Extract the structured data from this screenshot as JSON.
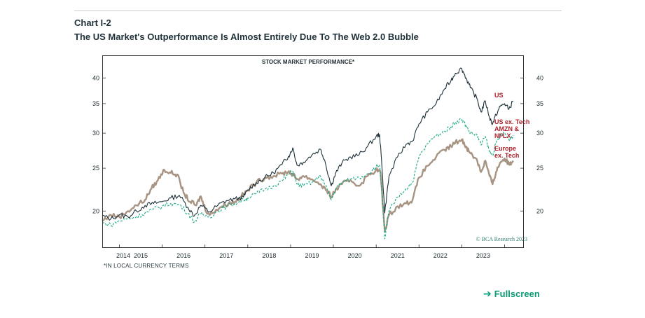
{
  "header": {
    "chart_label": "Chart I-2",
    "chart_title": "The US Market's Outperformance Is Almost Entirely Due To The Web 2.0 Bubble"
  },
  "fullscreen": {
    "label": "Fullscreen",
    "icon": "arrow-right-icon"
  },
  "colors": {
    "us": "#1c3038",
    "us_ex_tech": "#16a884",
    "europe": "#a69382",
    "label_red": "#b0222a",
    "copyright": "#2e7d6e"
  },
  "chart_data": {
    "type": "line",
    "title": "STOCK MARKET PERFORMANCE*",
    "footnote": "*IN LOCAL CURRENCY TERMS",
    "copyright": "© BCA Research 2023",
    "y_scale": "log",
    "xlim": [
      2013.6,
      2023.45
    ],
    "ylim": [
      16.5,
      45
    ],
    "x_ticks": [
      2014,
      2015,
      2016,
      2017,
      2018,
      2019,
      2020,
      2021,
      2022,
      2023
    ],
    "x_tick_labels": [
      "2014",
      "2015",
      "2016",
      "2017",
      "2018",
      "2019",
      "2020",
      "2021",
      "2022",
      "2023"
    ],
    "y_ticks": [
      20,
      25,
      30,
      35,
      40
    ],
    "y_tick_labels": [
      "20",
      "25",
      "30",
      "35",
      "40"
    ],
    "series": [
      {
        "name": "US",
        "line_style": "solid",
        "label_lines": [
          "US"
        ],
        "points": [
          [
            2013.6,
            19.5
          ],
          [
            2013.8,
            19.2
          ],
          [
            2014.0,
            19.6
          ],
          [
            2014.2,
            19.4
          ],
          [
            2014.4,
            20.0
          ],
          [
            2014.6,
            20.6
          ],
          [
            2014.8,
            20.8
          ],
          [
            2015.0,
            21.0
          ],
          [
            2015.2,
            21.4
          ],
          [
            2015.4,
            21.7
          ],
          [
            2015.6,
            20.4
          ],
          [
            2015.75,
            19.5
          ],
          [
            2015.9,
            20.6
          ],
          [
            2016.1,
            19.9
          ],
          [
            2016.3,
            20.6
          ],
          [
            2016.5,
            21.1
          ],
          [
            2016.7,
            21.3
          ],
          [
            2016.9,
            21.5
          ],
          [
            2017.0,
            22.3
          ],
          [
            2017.2,
            23.2
          ],
          [
            2017.4,
            23.8
          ],
          [
            2017.6,
            24.4
          ],
          [
            2017.8,
            25.5
          ],
          [
            2017.95,
            26.6
          ],
          [
            2018.05,
            27.8
          ],
          [
            2018.15,
            25.4
          ],
          [
            2018.3,
            25.8
          ],
          [
            2018.5,
            26.8
          ],
          [
            2018.7,
            27.6
          ],
          [
            2018.8,
            26.0
          ],
          [
            2018.95,
            22.8
          ],
          [
            2019.05,
            24.3
          ],
          [
            2019.2,
            25.7
          ],
          [
            2019.4,
            26.5
          ],
          [
            2019.6,
            26.8
          ],
          [
            2019.8,
            28.0
          ],
          [
            2020.0,
            29.5
          ],
          [
            2020.08,
            29.8
          ],
          [
            2020.15,
            24.0
          ],
          [
            2020.2,
            19.8
          ],
          [
            2020.3,
            24.0
          ],
          [
            2020.5,
            26.5
          ],
          [
            2020.7,
            28.3
          ],
          [
            2020.85,
            28.8
          ],
          [
            2021.0,
            31.5
          ],
          [
            2021.2,
            33.5
          ],
          [
            2021.4,
            35.0
          ],
          [
            2021.6,
            37.8
          ],
          [
            2021.75,
            39.5
          ],
          [
            2021.85,
            41.0
          ],
          [
            2022.0,
            42.0
          ],
          [
            2022.1,
            40.0
          ],
          [
            2022.2,
            38.0
          ],
          [
            2022.35,
            36.0
          ],
          [
            2022.45,
            33.5
          ],
          [
            2022.55,
            35.5
          ],
          [
            2022.65,
            32.5
          ],
          [
            2022.72,
            31.5
          ],
          [
            2022.8,
            33.0
          ],
          [
            2022.9,
            34.5
          ],
          [
            2023.0,
            35.0
          ],
          [
            2023.1,
            34.0
          ],
          [
            2023.2,
            35.5
          ]
        ]
      },
      {
        "name": "US ex. Tech AMZN & NFLX",
        "line_style": "dashed",
        "label_lines": [
          "US ex. Tech",
          "AMZN &",
          "NFLX"
        ],
        "points": [
          [
            2013.6,
            18.8
          ],
          [
            2013.8,
            18.6
          ],
          [
            2014.0,
            19.0
          ],
          [
            2014.2,
            19.2
          ],
          [
            2014.4,
            19.4
          ],
          [
            2014.6,
            19.8
          ],
          [
            2014.8,
            20.2
          ],
          [
            2015.0,
            20.5
          ],
          [
            2015.2,
            20.8
          ],
          [
            2015.4,
            20.7
          ],
          [
            2015.6,
            19.8
          ],
          [
            2015.75,
            18.9
          ],
          [
            2015.9,
            19.7
          ],
          [
            2016.1,
            19.4
          ],
          [
            2016.3,
            20.0
          ],
          [
            2016.5,
            20.5
          ],
          [
            2016.7,
            20.8
          ],
          [
            2016.9,
            21.2
          ],
          [
            2017.0,
            21.4
          ],
          [
            2017.2,
            21.9
          ],
          [
            2017.4,
            22.4
          ],
          [
            2017.6,
            22.8
          ],
          [
            2017.8,
            23.4
          ],
          [
            2017.95,
            24.2
          ],
          [
            2018.05,
            24.6
          ],
          [
            2018.15,
            23.0
          ],
          [
            2018.3,
            22.8
          ],
          [
            2018.5,
            23.2
          ],
          [
            2018.7,
            24.0
          ],
          [
            2018.8,
            23.0
          ],
          [
            2018.95,
            21.2
          ],
          [
            2019.05,
            22.4
          ],
          [
            2019.2,
            23.2
          ],
          [
            2019.4,
            23.6
          ],
          [
            2019.6,
            23.8
          ],
          [
            2019.8,
            24.3
          ],
          [
            2020.0,
            25.2
          ],
          [
            2020.08,
            25.4
          ],
          [
            2020.15,
            21.0
          ],
          [
            2020.2,
            17.3
          ],
          [
            2020.3,
            20.0
          ],
          [
            2020.5,
            21.5
          ],
          [
            2020.7,
            22.5
          ],
          [
            2020.85,
            23.2
          ],
          [
            2021.0,
            26.5
          ],
          [
            2021.2,
            28.4
          ],
          [
            2021.4,
            29.6
          ],
          [
            2021.6,
            30.3
          ],
          [
            2021.75,
            31.0
          ],
          [
            2021.85,
            31.8
          ],
          [
            2022.0,
            32.2
          ],
          [
            2022.1,
            31.2
          ],
          [
            2022.2,
            30.0
          ],
          [
            2022.35,
            29.8
          ],
          [
            2022.45,
            28.2
          ],
          [
            2022.55,
            29.5
          ],
          [
            2022.65,
            27.2
          ],
          [
            2022.72,
            26.8
          ],
          [
            2022.8,
            28.4
          ],
          [
            2022.9,
            29.6
          ],
          [
            2023.0,
            30.0
          ],
          [
            2023.1,
            29.0
          ],
          [
            2023.2,
            29.7
          ]
        ]
      },
      {
        "name": "Europe ex. Tech",
        "line_style": "solid",
        "label_lines": [
          "Europe",
          "ex. Tech"
        ],
        "points": [
          [
            2013.6,
            19.0
          ],
          [
            2013.8,
            19.6
          ],
          [
            2014.0,
            19.4
          ],
          [
            2014.2,
            20.0
          ],
          [
            2014.4,
            20.6
          ],
          [
            2014.6,
            21.2
          ],
          [
            2014.75,
            22.5
          ],
          [
            2014.9,
            23.5
          ],
          [
            2015.05,
            24.8
          ],
          [
            2015.2,
            24.4
          ],
          [
            2015.35,
            24.2
          ],
          [
            2015.5,
            22.0
          ],
          [
            2015.65,
            21.0
          ],
          [
            2015.8,
            20.6
          ],
          [
            2015.9,
            21.6
          ],
          [
            2016.0,
            20.3
          ],
          [
            2016.1,
            19.6
          ],
          [
            2016.25,
            20.1
          ],
          [
            2016.4,
            20.5
          ],
          [
            2016.55,
            20.8
          ],
          [
            2016.7,
            21.0
          ],
          [
            2016.85,
            21.6
          ],
          [
            2017.0,
            22.3
          ],
          [
            2017.2,
            23.2
          ],
          [
            2017.4,
            23.8
          ],
          [
            2017.6,
            24.0
          ],
          [
            2017.8,
            24.3
          ],
          [
            2017.95,
            24.6
          ],
          [
            2018.05,
            24.2
          ],
          [
            2018.15,
            23.6
          ],
          [
            2018.3,
            24.0
          ],
          [
            2018.5,
            23.6
          ],
          [
            2018.7,
            23.0
          ],
          [
            2018.85,
            22.2
          ],
          [
            2018.95,
            21.5
          ],
          [
            2019.05,
            22.3
          ],
          [
            2019.2,
            23.0
          ],
          [
            2019.4,
            23.5
          ],
          [
            2019.6,
            22.8
          ],
          [
            2019.8,
            24.0
          ],
          [
            2020.0,
            24.8
          ],
          [
            2020.1,
            24.5
          ],
          [
            2020.2,
            18.0
          ],
          [
            2020.3,
            19.6
          ],
          [
            2020.5,
            20.5
          ],
          [
            2020.7,
            20.8
          ],
          [
            2020.85,
            21.2
          ],
          [
            2021.0,
            23.8
          ],
          [
            2021.2,
            25.3
          ],
          [
            2021.4,
            26.5
          ],
          [
            2021.6,
            27.5
          ],
          [
            2021.75,
            28.0
          ],
          [
            2021.85,
            28.6
          ],
          [
            2022.0,
            29.0
          ],
          [
            2022.1,
            28.0
          ],
          [
            2022.2,
            27.0
          ],
          [
            2022.35,
            26.2
          ],
          [
            2022.45,
            24.5
          ],
          [
            2022.55,
            26.0
          ],
          [
            2022.65,
            24.0
          ],
          [
            2022.72,
            23.0
          ],
          [
            2022.8,
            24.5
          ],
          [
            2022.9,
            25.8
          ],
          [
            2023.0,
            26.3
          ],
          [
            2023.1,
            25.5
          ],
          [
            2023.2,
            26.0
          ]
        ]
      }
    ]
  }
}
